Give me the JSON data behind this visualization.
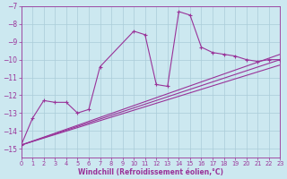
{
  "xlabel": "Windchill (Refroidissement éolien,°C)",
  "background_color": "#cce8f0",
  "grid_color": "#aaccd8",
  "line_color": "#993399",
  "xlim": [
    0,
    23
  ],
  "ylim": [
    -15.5,
    -7.0
  ],
  "xticks": [
    0,
    1,
    2,
    3,
    4,
    5,
    6,
    7,
    8,
    9,
    10,
    11,
    12,
    13,
    14,
    15,
    16,
    17,
    18,
    19,
    20,
    21,
    22,
    23
  ],
  "yticks": [
    -15,
    -14,
    -13,
    -12,
    -11,
    -10,
    -9,
    -8,
    -7
  ],
  "main_x": [
    0,
    1,
    2,
    3,
    4,
    5,
    6,
    7,
    10,
    11,
    12,
    13,
    14,
    15,
    16,
    17,
    18,
    19,
    20,
    21,
    22,
    23
  ],
  "main_y": [
    -14.8,
    -13.3,
    -12.3,
    -12.4,
    -12.4,
    -13.0,
    -12.8,
    -10.4,
    -8.4,
    -8.6,
    -11.4,
    -11.5,
    -7.3,
    -7.5,
    -9.3,
    -9.6,
    -9.7,
    -9.8,
    -10.0,
    -10.1,
    -10.0,
    -10.0
  ],
  "trend1_x": [
    0,
    23
  ],
  "trend1_y": [
    -14.8,
    -10.0
  ],
  "trend2_x": [
    0,
    23
  ],
  "trend2_y": [
    -14.8,
    -9.7
  ],
  "trend3_x": [
    0,
    23
  ],
  "trend3_y": [
    -14.8,
    -10.3
  ]
}
